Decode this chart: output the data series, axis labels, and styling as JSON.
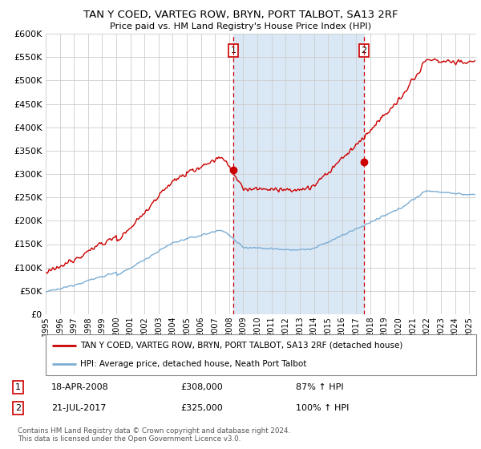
{
  "title": "TAN Y COED, VARTEG ROW, BRYN, PORT TALBOT, SA13 2RF",
  "subtitle": "Price paid vs. HM Land Registry's House Price Index (HPI)",
  "legend_line1": "TAN Y COED, VARTEG ROW, BRYN, PORT TALBOT, SA13 2RF (detached house)",
  "legend_line2": "HPI: Average price, detached house, Neath Port Talbot",
  "annotation1_date": "18-APR-2008",
  "annotation1_price": "£308,000",
  "annotation1_hpi": "87% ↑ HPI",
  "annotation2_date": "21-JUL-2017",
  "annotation2_price": "£325,000",
  "annotation2_hpi": "100% ↑ HPI",
  "footer": "Contains HM Land Registry data © Crown copyright and database right 2024.\nThis data is licensed under the Open Government Licence v3.0.",
  "red_color": "#cc0000",
  "blue_color": "#7aadd4",
  "shade_color": "#dae8f5",
  "vline_color": "#cc0000",
  "background_color": "#ffffff",
  "grid_color": "#cccccc",
  "ylim": [
    0,
    600000
  ],
  "yticks": [
    0,
    50000,
    100000,
    150000,
    200000,
    250000,
    300000,
    350000,
    400000,
    450000,
    500000,
    550000,
    600000
  ],
  "event1_x": 2008.29,
  "event2_x": 2017.55,
  "dot1_y": 308000,
  "dot2_y": 325000,
  "xmin": 1995,
  "xmax": 2025.5
}
